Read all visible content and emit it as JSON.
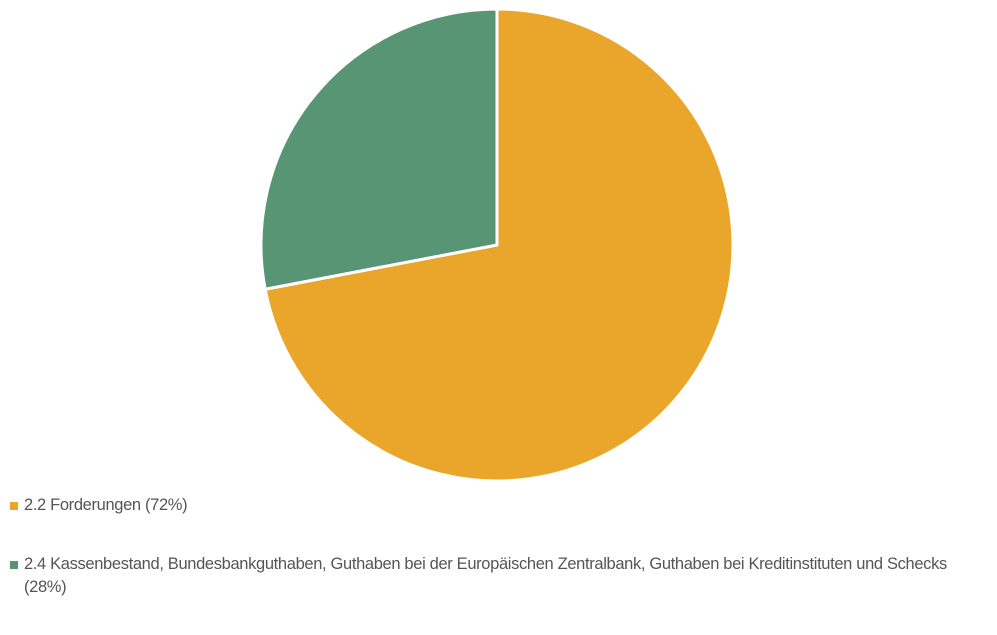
{
  "chart_data": {
    "type": "pie",
    "categories": [
      "2.2 Forderungen (72%)",
      "2.4 Kassenbestand, Bundesbankguthaben, Guthaben bei der Europäischen Zentralbank, Guthaben bei Kreditinstituten und Schecks (28%)"
    ],
    "values": [
      72,
      28
    ],
    "colors": [
      "#eaa52b",
      "#579574"
    ],
    "legend": "bottom-left"
  }
}
